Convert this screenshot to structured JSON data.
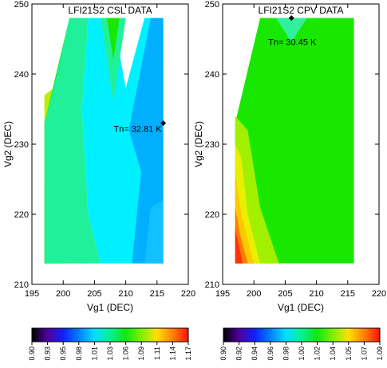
{
  "chart_data": [
    {
      "type": "contour",
      "title": "LFI21S2 CSL DATA",
      "xlabel": "Vg1 (DEC)",
      "ylabel": "Vg2 (DEC)",
      "xlim": [
        195,
        220
      ],
      "ylim": [
        210,
        250
      ],
      "x_ticks": [
        "195",
        "200",
        "205",
        "210",
        "215",
        "220"
      ],
      "y_ticks": [
        "210",
        "220",
        "230",
        "240",
        "250"
      ],
      "annotation": {
        "text": "Tn= 32.81 K",
        "x": 216,
        "y": 233
      },
      "colorbar_ticks": [
        "0.90",
        "0.93",
        "0.95",
        "0.98",
        "1.01",
        "1.03",
        "1.06",
        "1.09",
        "1.11",
        "1.14",
        "1.17"
      ],
      "data_region": [
        [
          197,
          213
        ],
        [
          216,
          213
        ],
        [
          216,
          248
        ],
        [
          201,
          248
        ]
      ],
      "bands": [
        {
          "level": 1.14,
          "color": "#ff3a10",
          "polygon": [
            [
              197,
              213
            ],
            [
              198,
              213
            ],
            [
              197,
              219
            ]
          ]
        },
        {
          "level": 1.11,
          "color": "#ff7a00",
          "polygon": [
            [
              197,
              213
            ],
            [
              199.2,
              213
            ],
            [
              197,
              222
            ]
          ]
        },
        {
          "level": 1.09,
          "color": "#ffc800",
          "polygon": [
            [
              197,
              213
            ],
            [
              200.5,
              213
            ],
            [
              198.5,
              225
            ],
            [
              197,
              225
            ]
          ]
        },
        {
          "level": 1.06,
          "color": "#b8f000",
          "polygon": [
            [
              197,
              213
            ],
            [
              202,
              213
            ],
            [
              200,
              234
            ],
            [
              198.5,
              238
            ],
            [
              197,
              237
            ]
          ]
        },
        {
          "level": 1.03,
          "color": "#18e800",
          "polygon": [
            [
              197,
              213
            ],
            [
              204,
              213
            ],
            [
              202,
              230
            ],
            [
              201,
              248
            ],
            [
              197,
              233
            ]
          ]
        },
        {
          "level": 1.01,
          "color": "#20f09a",
          "polygon": [
            [
              197,
              213
            ],
            [
              206,
              213
            ],
            [
              204,
              220
            ],
            [
              203,
              235
            ],
            [
              204,
              248
            ],
            [
              201,
              248
            ],
            [
              199,
              240
            ],
            [
              197,
              233
            ]
          ]
        },
        {
          "level": 0.98,
          "color": "#00f0ff",
          "polygon": [
            [
              206,
              213
            ],
            [
              216,
              213
            ],
            [
              216,
              248
            ],
            [
              213,
              248
            ],
            [
              210,
              238
            ],
            [
              208,
              248
            ],
            [
              204,
              248
            ],
            [
              203,
              235
            ],
            [
              204,
              220
            ]
          ]
        },
        {
          "level": 1.01,
          "color": "#20f09a",
          "polygon": [
            [
              206,
              248
            ],
            [
              210,
              248
            ],
            [
              208,
              236
            ]
          ]
        },
        {
          "level": 1.03,
          "color": "#18e800",
          "polygon": [
            [
              207,
              248
            ],
            [
              209,
              248
            ],
            [
              208,
              242
            ]
          ]
        },
        {
          "level": 0.95,
          "color": "#00b0ff",
          "polygon": [
            [
              211,
              213
            ],
            [
              216,
              213
            ],
            [
              216,
              248
            ],
            [
              214,
              248
            ],
            [
              210.5,
              232
            ],
            [
              212.5,
              226
            ],
            [
              212,
              222
            ]
          ]
        },
        {
          "level": 0.95,
          "color": "#10c0ff",
          "polygon": [
            [
              213,
              213
            ],
            [
              216,
              213
            ],
            [
              216,
              222
            ],
            [
              214,
              221
            ]
          ]
        }
      ]
    },
    {
      "type": "contour",
      "title": "LFI21S2 CPV DATA",
      "xlabel": "Vg1 (DEC)",
      "ylabel": "Vg2 (DEC)",
      "xlim": [
        195,
        220
      ],
      "ylim": [
        210,
        250
      ],
      "x_ticks": [
        "195",
        "200",
        "205",
        "210",
        "215",
        "220"
      ],
      "y_ticks": [
        "210",
        "220",
        "230",
        "240",
        "250"
      ],
      "annotation": {
        "text": "Tn= 30.45 K",
        "x": 206,
        "y": 248
      },
      "colorbar_ticks": [
        "0.90",
        "0.92",
        "0.94",
        "0.96",
        "0.98",
        "1.00",
        "1.02",
        "1.04",
        "1.05",
        "1.07",
        "1.09"
      ],
      "data_region": [
        [
          197,
          213
        ],
        [
          216,
          213
        ],
        [
          216,
          248
        ],
        [
          201,
          248
        ]
      ],
      "bands": [
        {
          "level": 1.02,
          "color": "#18e800",
          "polygon": [
            [
              197,
              213
            ],
            [
              216,
              213
            ],
            [
              216,
              248
            ],
            [
              201,
              248
            ],
            [
              197,
              233
            ]
          ]
        },
        {
          "level": 1.04,
          "color": "#a0f000",
          "polygon": [
            [
              197,
              213
            ],
            [
              204,
              213
            ],
            [
              201,
              221
            ],
            [
              199,
              232
            ],
            [
              197,
              234
            ]
          ]
        },
        {
          "level": 1.05,
          "color": "#e8f000",
          "polygon": [
            [
              197,
              213
            ],
            [
              201,
              213
            ],
            [
              199,
              220
            ],
            [
              198,
              228
            ],
            [
              197,
              230
            ]
          ]
        },
        {
          "level": 1.05,
          "color": "#ffc800",
          "polygon": [
            [
              197,
              213
            ],
            [
              200,
              213
            ],
            [
              198,
              220
            ],
            [
              197,
              226
            ]
          ]
        },
        {
          "level": 1.07,
          "color": "#ff7a00",
          "polygon": [
            [
              197,
              213
            ],
            [
              199,
              213
            ],
            [
              197.8,
              217
            ],
            [
              197,
              221
            ]
          ]
        },
        {
          "level": 1.09,
          "color": "#ff3010",
          "polygon": [
            [
              197,
              213
            ],
            [
              198.2,
              213
            ],
            [
              197,
              218
            ]
          ]
        },
        {
          "level": 0.98,
          "color": "#30f0a0",
          "polygon": [
            [
              203.5,
              248
            ],
            [
              208.5,
              248
            ],
            [
              207,
              246
            ],
            [
              206,
              244.5
            ],
            [
              205,
              246
            ]
          ]
        }
      ]
    }
  ],
  "colorbar": {
    "stops": [
      "#000000",
      "#5000a0",
      "#1020ff",
      "#0080ff",
      "#00e0ff",
      "#00f090",
      "#10e810",
      "#80f000",
      "#ffe000",
      "#ff8000",
      "#ff1010"
    ]
  }
}
